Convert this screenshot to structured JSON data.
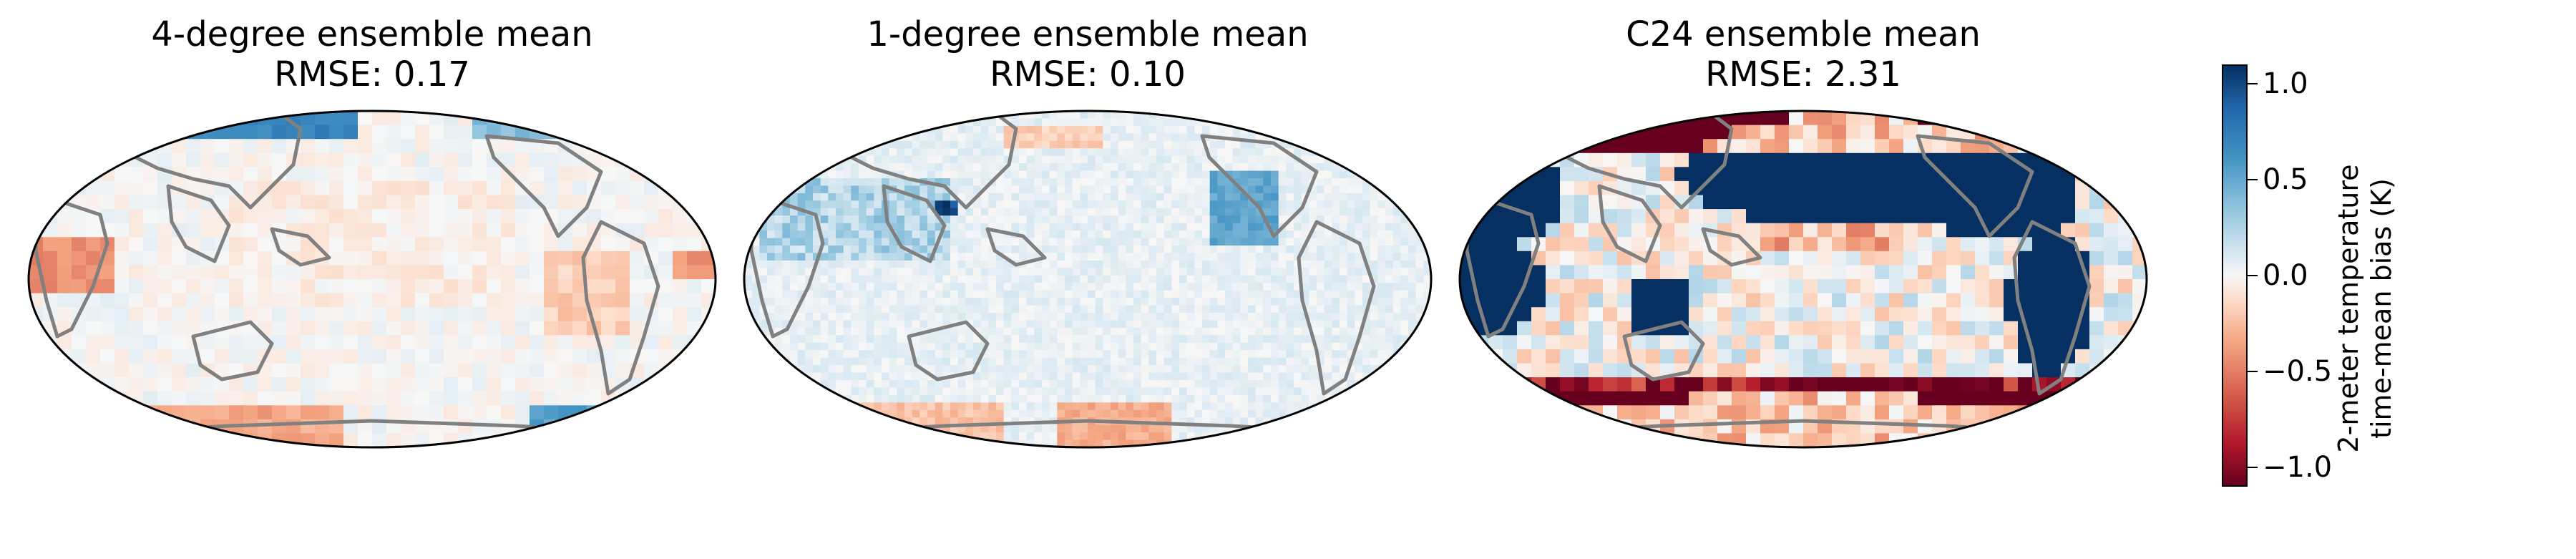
{
  "panels": [
    {
      "title": "4-degree ensemble mean",
      "subtitle": "RMSE: 0.17"
    },
    {
      "title": "1-degree ensemble mean",
      "subtitle": "RMSE: 0.10"
    },
    {
      "title": "C24 ensemble mean",
      "subtitle": "RMSE: 2.31"
    }
  ],
  "colorbar": {
    "label_line1": "2-meter temperature",
    "label_line2": "time-mean bias (K)",
    "ticks": [
      {
        "value": 1.0,
        "label": "1.0"
      },
      {
        "value": 0.5,
        "label": "0.5"
      },
      {
        "value": 0.0,
        "label": "0.0"
      },
      {
        "value": -0.5,
        "label": "−0.5"
      },
      {
        "value": -1.0,
        "label": "−1.0"
      }
    ],
    "range": [
      -1.1,
      1.1
    ],
    "colormap": "RdBu_r"
  },
  "chart_data": [
    {
      "type": "heatmap",
      "title": "4-degree ensemble mean",
      "subtitle": "RMSE: 0.17",
      "projection": "Robinson, centered on Pacific",
      "value_range": [
        -1.1,
        1.1
      ],
      "bias_pattern": "mostly near zero; light warm bias over Africa/South America; cool bias over northern Siberia and Antarctic fringe"
    },
    {
      "type": "heatmap",
      "title": "1-degree ensemble mean",
      "subtitle": "RMSE: 0.10",
      "projection": "Robinson, centered on Pacific",
      "value_range": [
        -1.1,
        1.1
      ],
      "bias_pattern": "near zero with scattered light cool bias over Asia; light warm bias over Antarctica"
    },
    {
      "type": "heatmap",
      "title": "C24 ensemble mean",
      "subtitle": "RMSE: 2.31",
      "projection": "Robinson, centered on Pacific",
      "value_range": [
        -1.1,
        1.1
      ],
      "bias_pattern": "saturated: strong warm bias in polar bands, strong cool bias over continents, mixed over oceans"
    }
  ]
}
